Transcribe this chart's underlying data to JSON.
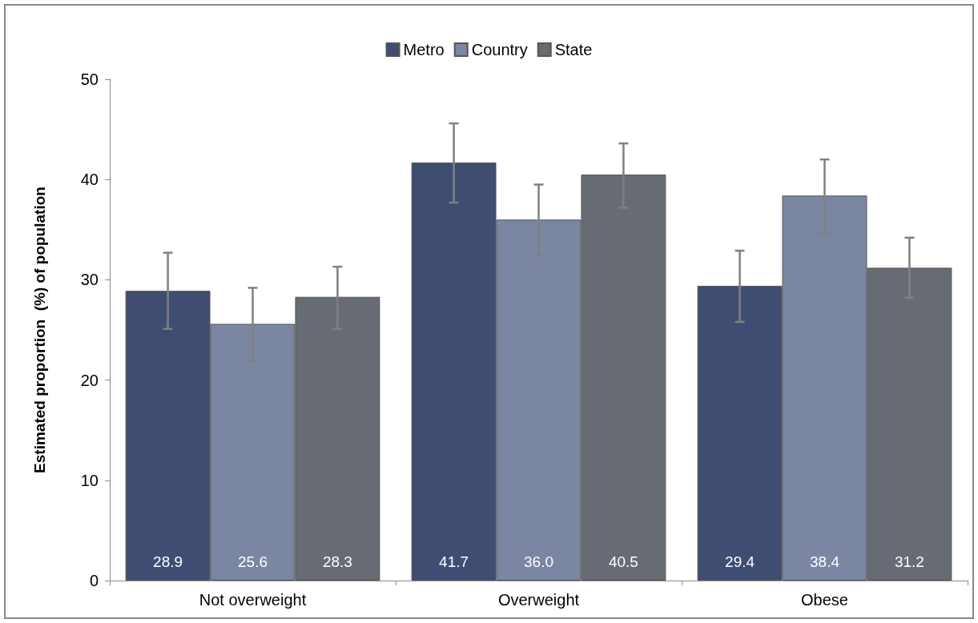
{
  "chart_data": {
    "type": "bar",
    "ylabel": "Estimated proportion  (%) of population",
    "categories": [
      "Not overweight",
      "Overweight",
      "Obese"
    ],
    "series": [
      {
        "name": "Metro",
        "color": "#3f4d73",
        "values": [
          28.9,
          41.7,
          29.4
        ],
        "value_labels": [
          "28.9",
          "41.7",
          "29.4"
        ],
        "errors": [
          [
            25.1,
            32.7
          ],
          [
            37.7,
            45.6
          ],
          [
            25.8,
            32.9
          ]
        ]
      },
      {
        "name": "Country",
        "color": "#7b86a3",
        "values": [
          25.6,
          36.0,
          38.4
        ],
        "value_labels": [
          "25.6",
          "36.0",
          "38.4"
        ],
        "errors": [
          [
            21.9,
            29.2
          ],
          [
            32.4,
            39.5
          ],
          [
            34.6,
            42.0
          ]
        ]
      },
      {
        "name": "State",
        "color": "#676b73",
        "values": [
          28.3,
          40.5,
          31.2
        ],
        "value_labels": [
          "28.3",
          "40.5",
          "31.2"
        ],
        "errors": [
          [
            25.1,
            31.3
          ],
          [
            37.2,
            43.6
          ],
          [
            28.2,
            34.2
          ]
        ]
      }
    ],
    "ylim": [
      0,
      50
    ],
    "yticks": [
      0,
      10,
      20,
      30,
      40,
      50
    ],
    "grid": false,
    "legend": "top"
  }
}
